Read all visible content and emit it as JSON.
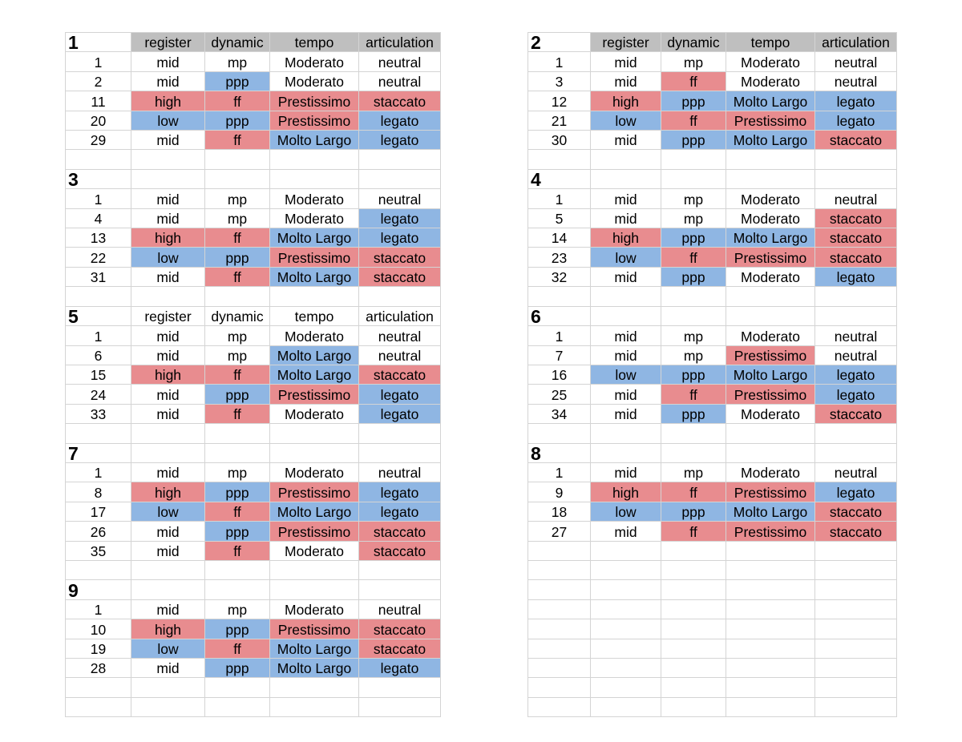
{
  "columns": [
    "register",
    "dynamic",
    "tempo",
    "articulation"
  ],
  "colors": {
    "high": "#e88c8f",
    "low": "#8fb6e3",
    "header": "#bfbfbf",
    "grid": "#d4d4d4"
  },
  "left": [
    {
      "num": "1",
      "header": "shaded",
      "rows": [
        [
          "1",
          "mid",
          "mp",
          "Moderato",
          "neutral"
        ],
        [
          "2",
          "mid",
          "ppp",
          "Moderato",
          "neutral"
        ],
        [
          "11",
          "high",
          "ff",
          "Prestissimo",
          "staccato"
        ],
        [
          "20",
          "low",
          "ppp",
          "Prestissimo",
          "legato"
        ],
        [
          "29",
          "mid",
          "ff",
          "Molto Largo",
          "legato"
        ]
      ]
    },
    {
      "num": "3",
      "header": "none",
      "rows": [
        [
          "1",
          "mid",
          "mp",
          "Moderato",
          "neutral"
        ],
        [
          "4",
          "mid",
          "mp",
          "Moderato",
          "legato"
        ],
        [
          "13",
          "high",
          "ff",
          "Molto Largo",
          "legato"
        ],
        [
          "22",
          "low",
          "ppp",
          "Prestissimo",
          "staccato"
        ],
        [
          "31",
          "mid",
          "ff",
          "Molto Largo",
          "staccato"
        ]
      ]
    },
    {
      "num": "5",
      "header": "plain",
      "rows": [
        [
          "1",
          "mid",
          "mp",
          "Moderato",
          "neutral"
        ],
        [
          "6",
          "mid",
          "mp",
          "Molto Largo",
          "neutral"
        ],
        [
          "15",
          "high",
          "ff",
          "Molto Largo",
          "staccato"
        ],
        [
          "24",
          "mid",
          "ppp",
          "Prestissimo",
          "legato"
        ],
        [
          "33",
          "mid",
          "ff",
          "Moderato",
          "legato"
        ]
      ]
    },
    {
      "num": "7",
      "header": "none",
      "rows": [
        [
          "1",
          "mid",
          "mp",
          "Moderato",
          "neutral"
        ],
        [
          "8",
          "high",
          "ppp",
          "Prestissimo",
          "legato"
        ],
        [
          "17",
          "low",
          "ff",
          "Molto Largo",
          "legato"
        ],
        [
          "26",
          "mid",
          "ppp",
          "Prestissimo",
          "staccato"
        ],
        [
          "35",
          "mid",
          "ff",
          "Moderato",
          "staccato"
        ]
      ]
    },
    {
      "num": "9",
      "header": "none",
      "rows": [
        [
          "1",
          "mid",
          "mp",
          "Moderato",
          "neutral"
        ],
        [
          "10",
          "high",
          "ppp",
          "Prestissimo",
          "staccato"
        ],
        [
          "19",
          "low",
          "ff",
          "Molto Largo",
          "staccato"
        ],
        [
          "28",
          "mid",
          "ppp",
          "Molto Largo",
          "legato"
        ]
      ]
    }
  ],
  "right": [
    {
      "num": "2",
      "header": "shaded",
      "rows": [
        [
          "1",
          "mid",
          "mp",
          "Moderato",
          "neutral"
        ],
        [
          "3",
          "mid",
          "ff",
          "Moderato",
          "neutral"
        ],
        [
          "12",
          "high",
          "ppp",
          "Molto Largo",
          "legato"
        ],
        [
          "21",
          "low",
          "ff",
          "Prestissimo",
          "legato"
        ],
        [
          "30",
          "mid",
          "ppp",
          "Molto Largo",
          "staccato"
        ]
      ]
    },
    {
      "num": "4",
      "header": "none",
      "rows": [
        [
          "1",
          "mid",
          "mp",
          "Moderato",
          "neutral"
        ],
        [
          "5",
          "mid",
          "mp",
          "Moderato",
          "staccato"
        ],
        [
          "14",
          "high",
          "ppp",
          "Molto Largo",
          "staccato"
        ],
        [
          "23",
          "low",
          "ff",
          "Prestissimo",
          "staccato"
        ],
        [
          "32",
          "mid",
          "ppp",
          "Moderato",
          "legato"
        ]
      ]
    },
    {
      "num": "6",
      "header": "none",
      "rows": [
        [
          "1",
          "mid",
          "mp",
          "Moderato",
          "neutral"
        ],
        [
          "7",
          "mid",
          "mp",
          "Prestissimo",
          "neutral"
        ],
        [
          "16",
          "low",
          "ppp",
          "Molto Largo",
          "legato"
        ],
        [
          "25",
          "mid",
          "ff",
          "Prestissimo",
          "legato"
        ],
        [
          "34",
          "mid",
          "ppp",
          "Moderato",
          "staccato"
        ]
      ]
    },
    {
      "num": "8",
      "header": "none",
      "rows": [
        [
          "1",
          "mid",
          "mp",
          "Moderato",
          "neutral"
        ],
        [
          "9",
          "high",
          "ff",
          "Prestissimo",
          "legato"
        ],
        [
          "18",
          "low",
          "ppp",
          "Molto Largo",
          "staccato"
        ],
        [
          "27",
          "mid",
          "ff",
          "Prestissimo",
          "staccato"
        ]
      ]
    }
  ]
}
